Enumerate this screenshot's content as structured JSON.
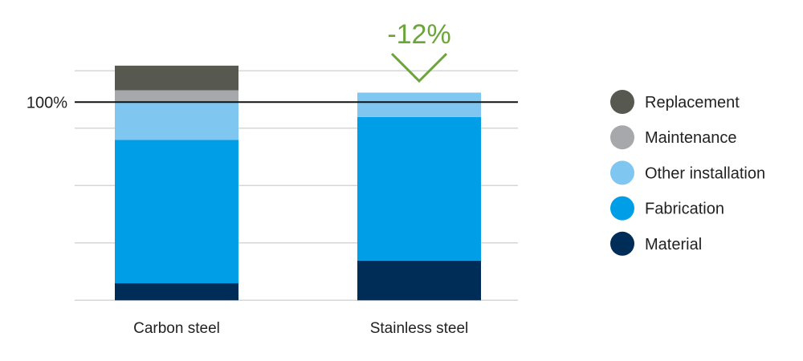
{
  "chart_data": {
    "type": "bar",
    "stacked": true,
    "categories": [
      "Carbon steel",
      "Stainless steel"
    ],
    "series": [
      {
        "name": "Material",
        "color": "#002d57",
        "values": [
          8.6,
          20.0
        ]
      },
      {
        "name": "Fabrication",
        "color": "#009ee6",
        "values": [
          72.3,
          72.5
        ]
      },
      {
        "name": "Other installation",
        "color": "#7fc6f1",
        "values": [
          19.0,
          12.3
        ]
      },
      {
        "name": "Maintenance",
        "color": "#a6a8ab",
        "values": [
          6.1,
          0
        ]
      },
      {
        "name": "Replacement",
        "color": "#575850",
        "values": [
          12.4,
          0
        ]
      }
    ],
    "reference_line": {
      "value": 100,
      "label": "100%"
    },
    "annotation": {
      "text": "-12%",
      "color": "#6ba539",
      "target": "Stainless steel"
    },
    "ylim": [
      0,
      125
    ],
    "grid": true,
    "legend": "right",
    "title": "",
    "xlabel": "",
    "ylabel": ""
  }
}
